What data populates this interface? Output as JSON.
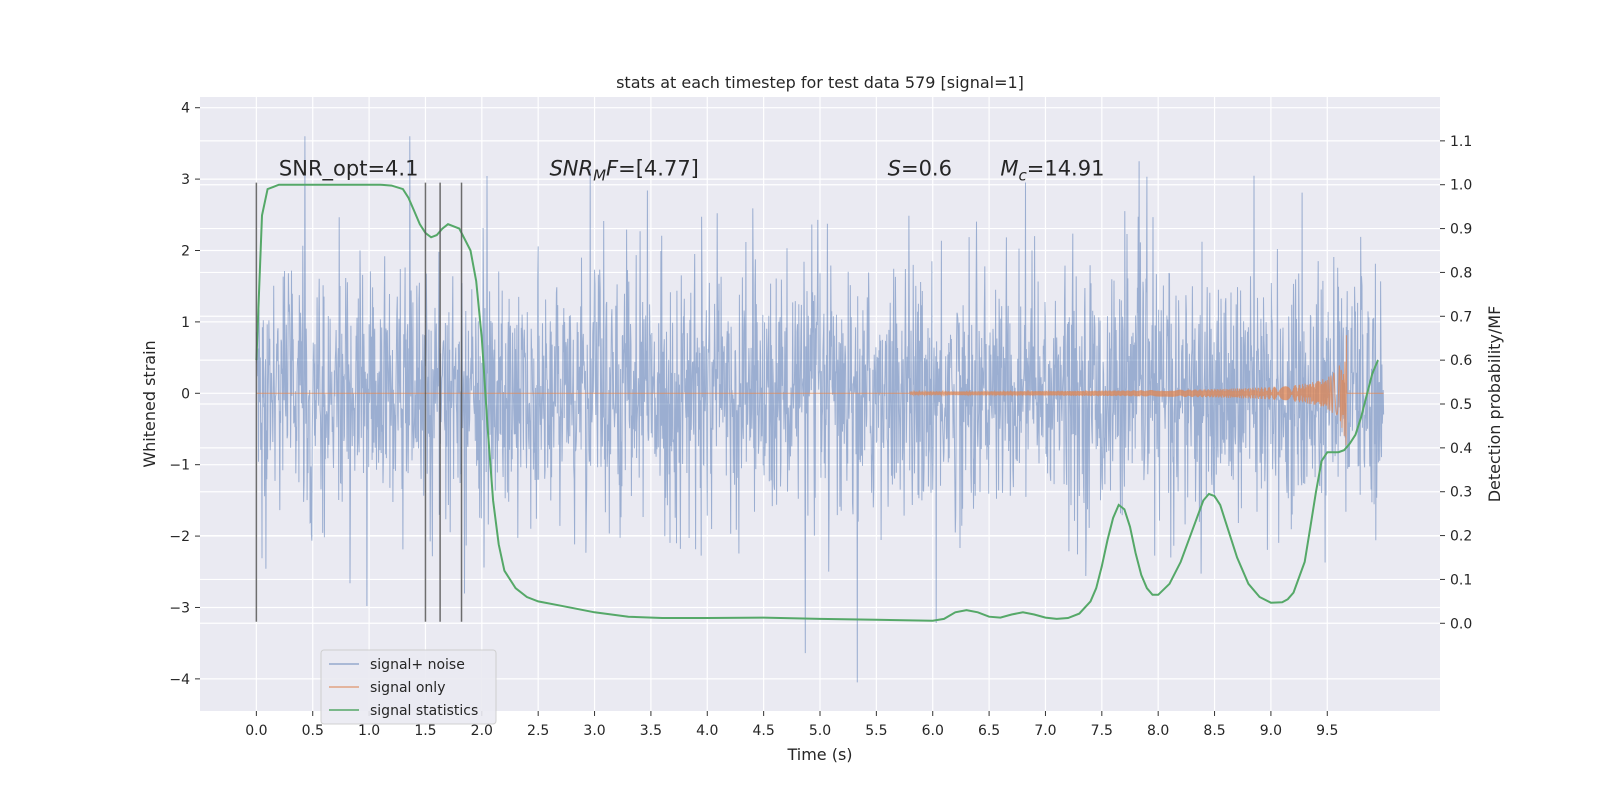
{
  "chart_data": {
    "type": "line",
    "title": "stats at each timestep for test data 579 [signal=1]",
    "xlabel": "Time (s)",
    "ylabel_left": "Whitened strain",
    "ylabel_right": "Detection probability/MF",
    "xlim": [
      -0.5,
      10.5
    ],
    "ylim_left": [
      -4.45,
      4.15
    ],
    "ylim_right": [
      -0.2,
      1.2
    ],
    "x_ticks": [
      "0.0",
      "0.5",
      "1.0",
      "1.5",
      "2.0",
      "2.5",
      "3.0",
      "3.5",
      "4.0",
      "4.5",
      "5.0",
      "5.5",
      "6.0",
      "6.5",
      "7.0",
      "7.5",
      "8.0",
      "8.5",
      "9.0",
      "9.5"
    ],
    "y_ticks_left": [
      "4",
      "3",
      "2",
      "1",
      "0",
      "−1",
      "−2",
      "−3",
      "−4"
    ],
    "y_ticks_right": [
      "1.1",
      "1.0",
      "0.9",
      "0.8",
      "0.7",
      "0.6",
      "0.5",
      "0.4",
      "0.3",
      "0.2",
      "0.1",
      "0.0"
    ],
    "grid": true,
    "legend_placement": "lower-left",
    "colors": {
      "noise": "#4c72b0",
      "signal": "#dd8452",
      "stats": "#55a868",
      "vlines": "#555555",
      "background": "#eaeaf2"
    },
    "series": [
      {
        "name": "signal+ noise",
        "kind": "whitened-strain-noise",
        "x_range": [
          0.0,
          10.0
        ],
        "envelope_core": [
          -1.5,
          1.5
        ],
        "peak_max": 3.6,
        "peak_min": -4.05
      },
      {
        "name": "signal only",
        "kind": "chirp",
        "start_x": 5.8,
        "merger_x": 9.67,
        "peak_amplitude": 0.95
      },
      {
        "name": "signal statistics",
        "axis": "right",
        "x": [
          0.0,
          0.05,
          0.1,
          0.15,
          0.2,
          0.3,
          0.5,
          0.8,
          1.0,
          1.1,
          1.2,
          1.3,
          1.35,
          1.4,
          1.45,
          1.5,
          1.55,
          1.6,
          1.65,
          1.7,
          1.8,
          1.9,
          1.95,
          2.0,
          2.05,
          2.1,
          2.15,
          2.2,
          2.3,
          2.4,
          2.5,
          2.7,
          3.0,
          3.3,
          3.6,
          4.0,
          4.5,
          5.0,
          5.5,
          6.0,
          6.1,
          6.2,
          6.3,
          6.4,
          6.5,
          6.6,
          6.7,
          6.8,
          6.9,
          7.0,
          7.1,
          7.2,
          7.3,
          7.4,
          7.45,
          7.5,
          7.55,
          7.6,
          7.65,
          7.7,
          7.75,
          7.8,
          7.85,
          7.9,
          7.95,
          8.0,
          8.1,
          8.2,
          8.3,
          8.4,
          8.45,
          8.5,
          8.55,
          8.6,
          8.7,
          8.8,
          8.9,
          9.0,
          9.1,
          9.15,
          9.2,
          9.3,
          9.35,
          9.4,
          9.45,
          9.5,
          9.55,
          9.6,
          9.65,
          9.7,
          9.75,
          9.8,
          9.85,
          9.9,
          9.95
        ],
        "y": [
          0.6,
          0.93,
          0.99,
          0.995,
          1.0,
          1.0,
          1.0,
          1.0,
          1.0,
          1.0,
          0.998,
          0.99,
          0.97,
          0.94,
          0.91,
          0.89,
          0.88,
          0.885,
          0.9,
          0.91,
          0.9,
          0.85,
          0.78,
          0.65,
          0.45,
          0.28,
          0.18,
          0.12,
          0.08,
          0.06,
          0.05,
          0.04,
          0.025,
          0.015,
          0.012,
          0.012,
          0.013,
          0.01,
          0.008,
          0.006,
          0.01,
          0.025,
          0.03,
          0.025,
          0.015,
          0.013,
          0.02,
          0.025,
          0.02,
          0.013,
          0.01,
          0.012,
          0.022,
          0.05,
          0.08,
          0.13,
          0.19,
          0.24,
          0.27,
          0.26,
          0.22,
          0.16,
          0.11,
          0.08,
          0.065,
          0.065,
          0.09,
          0.14,
          0.21,
          0.28,
          0.295,
          0.29,
          0.27,
          0.23,
          0.15,
          0.09,
          0.06,
          0.047,
          0.048,
          0.055,
          0.07,
          0.14,
          0.22,
          0.3,
          0.37,
          0.39,
          0.39,
          0.39,
          0.395,
          0.41,
          0.43,
          0.47,
          0.52,
          0.57,
          0.6
        ]
      }
    ],
    "vertical_markers_x": [
      0.0,
      1.5,
      1.63,
      1.82
    ],
    "annotations": [
      {
        "x": 0.2,
        "y": 3.05,
        "parts": [
          {
            "t": "SNR_opt=4.1",
            "style": "normal"
          }
        ]
      },
      {
        "x": 2.6,
        "y": 3.05,
        "parts": [
          {
            "t": "SNR",
            "style": "italic"
          },
          {
            "t": "M",
            "style": "italic-sub"
          },
          {
            "t": "F",
            "style": "italic"
          },
          {
            "t": "=[4.77]",
            "style": "normal"
          }
        ]
      },
      {
        "x": 5.6,
        "y": 3.05,
        "parts": [
          {
            "t": "S",
            "style": "italic"
          },
          {
            "t": "=0.6",
            "style": "normal"
          }
        ]
      },
      {
        "x": 6.6,
        "y": 3.05,
        "parts": [
          {
            "t": "M",
            "style": "italic"
          },
          {
            "t": "c",
            "style": "italic-sub"
          },
          {
            "t": "=14.91",
            "style": "normal"
          }
        ]
      }
    ]
  }
}
